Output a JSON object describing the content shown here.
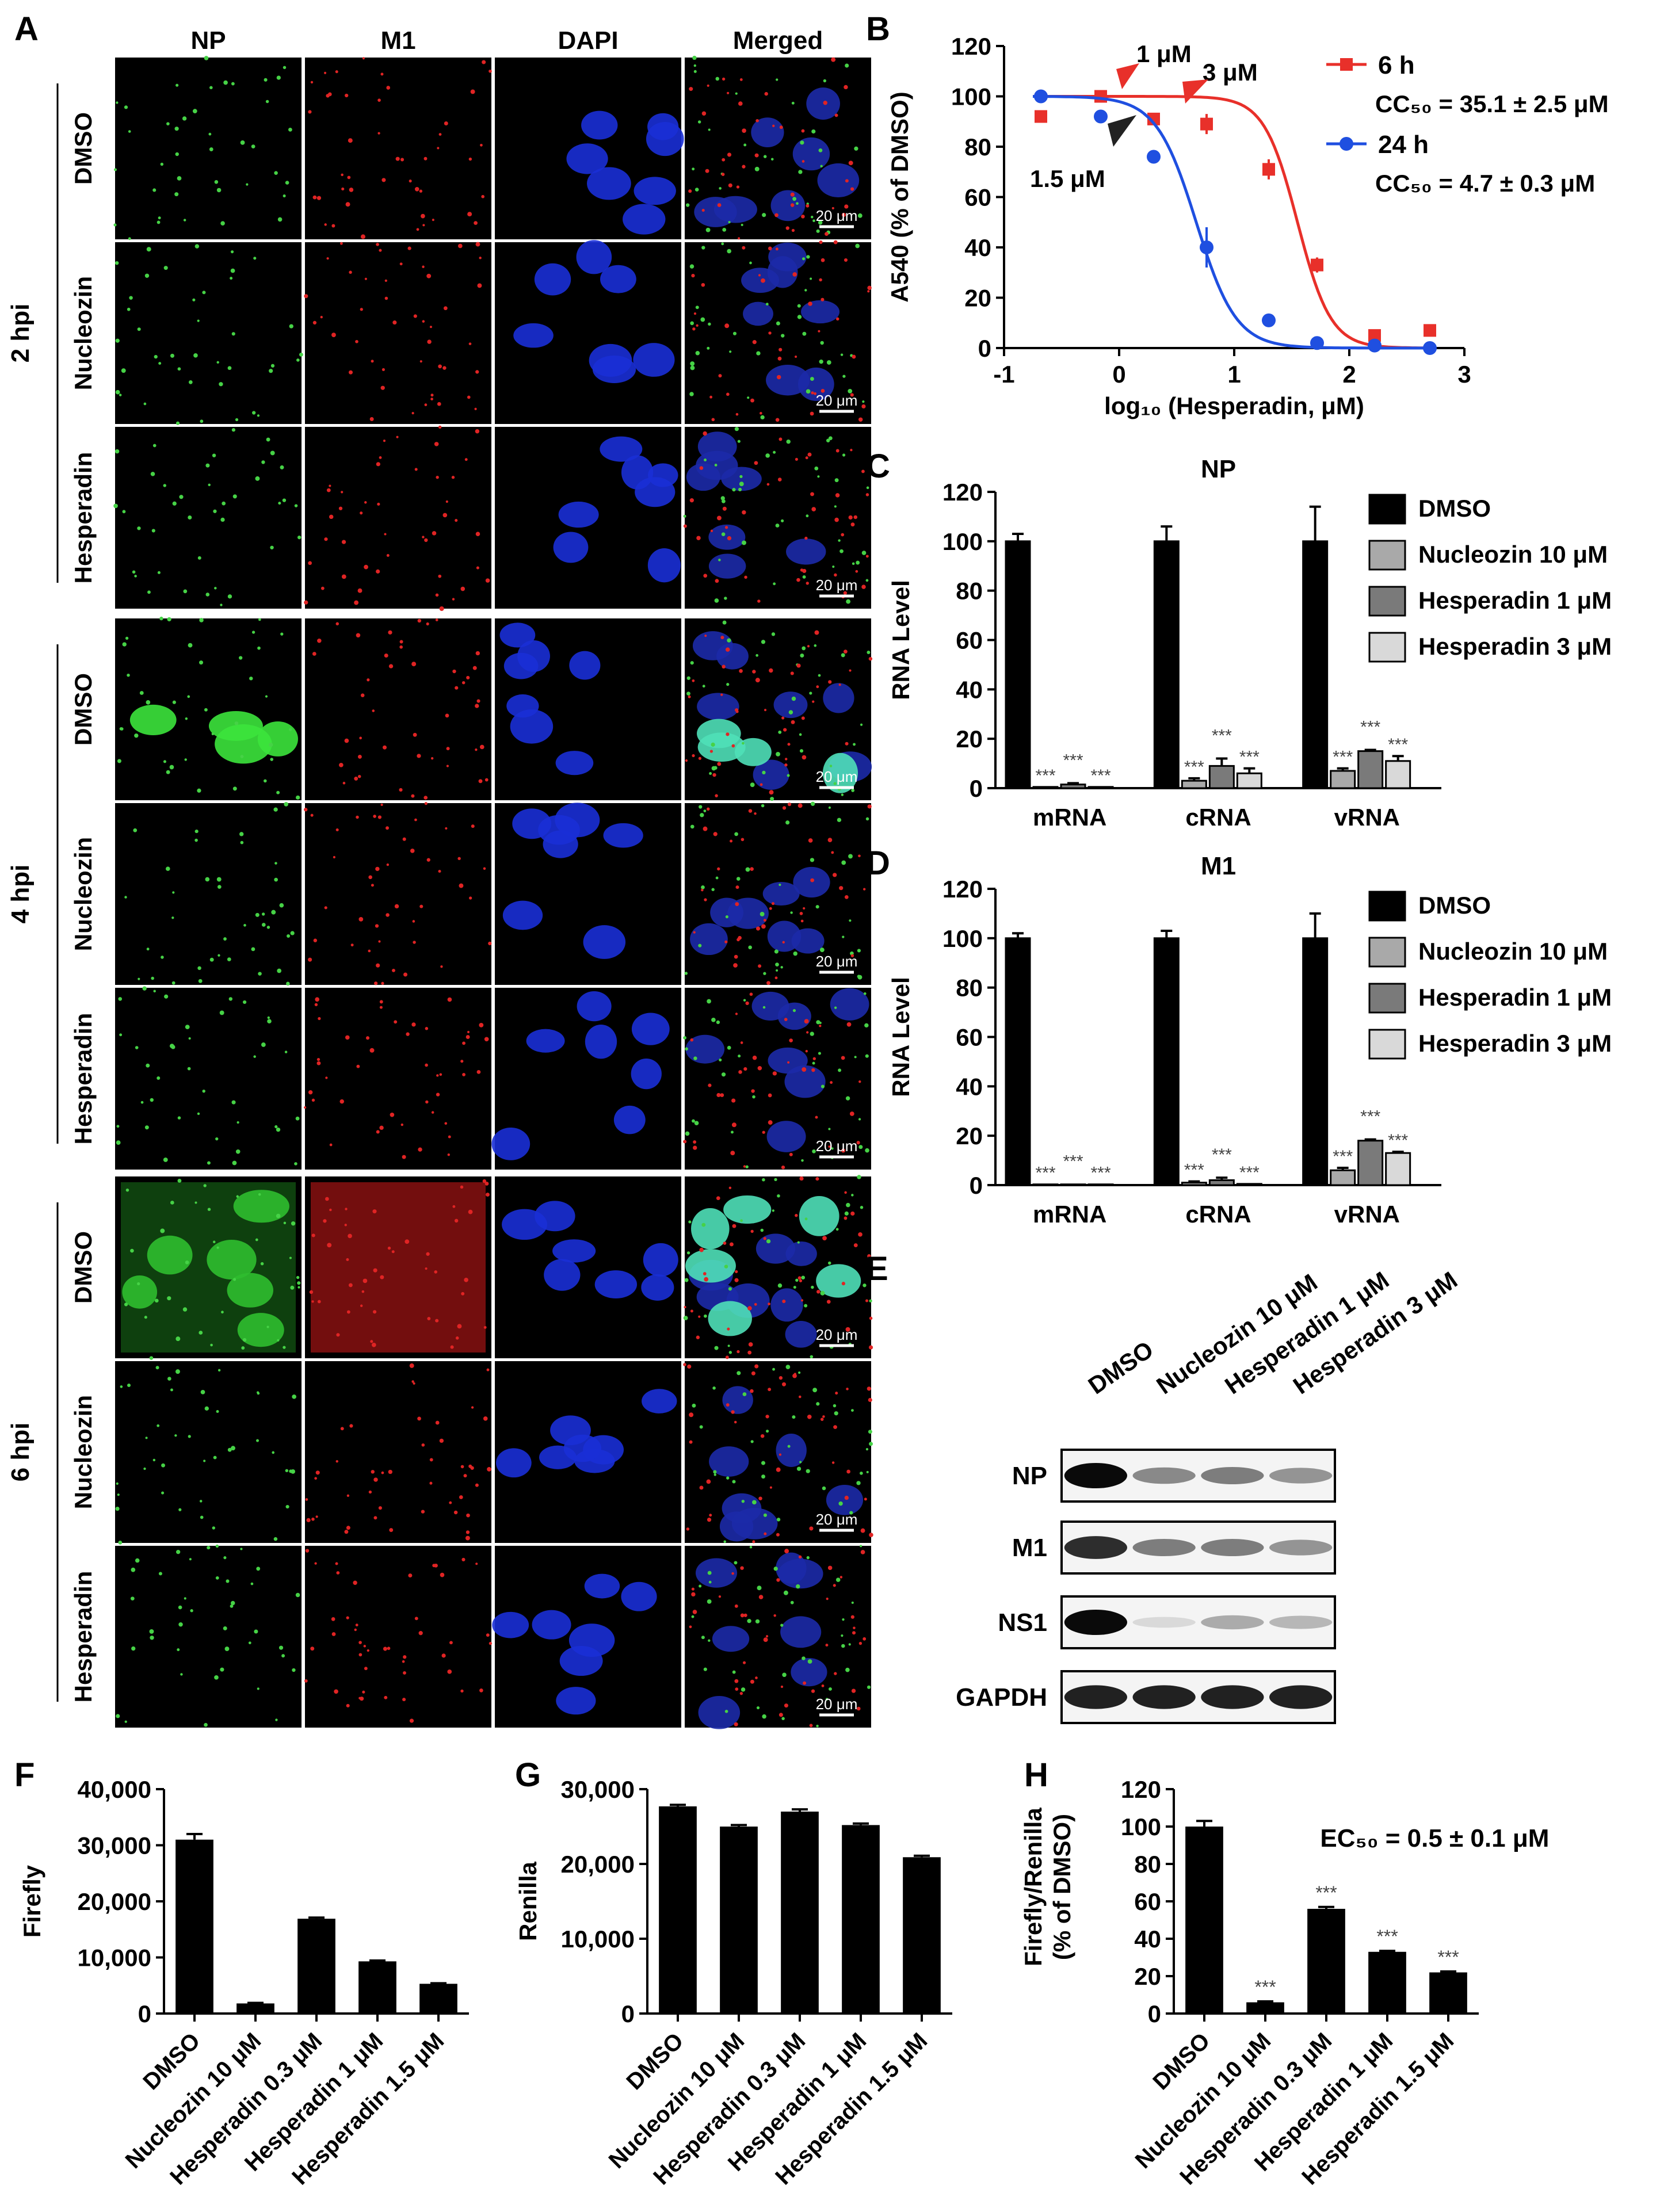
{
  "panel_letters": [
    "A",
    "B",
    "C",
    "D",
    "E",
    "F",
    "G",
    "H"
  ],
  "microscopy": {
    "columns": [
      "NP",
      "M1",
      "DAPI",
      "Merged"
    ],
    "timepoints": [
      {
        "label": "2 hpi",
        "rows": [
          "DMSO",
          "Nucleozin",
          "Hesperadin"
        ]
      },
      {
        "label": "4 hpi",
        "rows": [
          "DMSO",
          "Nucleozin",
          "Hesperadin"
        ]
      },
      {
        "label": "6 hpi",
        "rows": [
          "DMSO",
          "Nucleozin",
          "Hesperadin"
        ]
      }
    ],
    "scale_bar": "20 μm"
  },
  "western": {
    "lanes": [
      "DMSO",
      "Nucleozin 10 μM",
      "Hesperadin 1 μM",
      "Hesperadin 3 μM"
    ],
    "bands": [
      {
        "name": "NP",
        "intensity": [
          1.0,
          0.45,
          0.5,
          0.4
        ]
      },
      {
        "name": "M1",
        "intensity": [
          0.85,
          0.5,
          0.5,
          0.4
        ]
      },
      {
        "name": "NS1",
        "intensity": [
          1.0,
          0.1,
          0.3,
          0.25
        ]
      },
      {
        "name": "GAPDH",
        "intensity": [
          0.9,
          0.9,
          0.9,
          0.9
        ]
      }
    ]
  },
  "colors": {
    "h6": "#e8302a",
    "h24": "#1f4fe0",
    "black": "#000000",
    "g1": "#a9a9a9",
    "g2": "#7a7a7a",
    "g3": "#d9d9d9"
  },
  "chart_data": [
    {
      "id": "B",
      "type": "line",
      "xlabel": "log₁₀ (Hesperadin, μM)",
      "ylabel": "A540 (% of DMSO)",
      "xlim": [
        -1,
        3
      ],
      "ylim": [
        0,
        120
      ],
      "xticks": [
        "-1",
        "0",
        "1",
        "2",
        "3"
      ],
      "yticks": [
        "0",
        "20",
        "40",
        "60",
        "80",
        "100",
        "120"
      ],
      "series": [
        {
          "name": "6 h",
          "stat": "CC₅₀ = 35.1 ± 2.5 μM",
          "x": [
            -0.68,
            -0.16,
            0.3,
            0.76,
            1.3,
            1.72,
            2.22,
            2.7
          ],
          "y": [
            92,
            100,
            91,
            89,
            71,
            33,
            5,
            7
          ],
          "err": [
            0,
            0,
            2,
            4,
            4,
            3,
            0,
            0
          ]
        },
        {
          "name": "24 h",
          "stat": "CC₅₀ = 4.7 ± 0.3 μM",
          "x": [
            -0.68,
            -0.16,
            0.3,
            0.76,
            1.3,
            1.72,
            2.22,
            2.7
          ],
          "y": [
            100,
            92,
            76,
            40,
            11,
            2,
            1,
            0
          ],
          "err": [
            0,
            0,
            0,
            8,
            0,
            0,
            0,
            0
          ]
        }
      ],
      "annotations": [
        "1 μM",
        "3 μM",
        "1.5 μM"
      ]
    },
    {
      "id": "C",
      "type": "bar",
      "title": "NP",
      "ylabel": "RNA Level",
      "ylim": [
        0,
        120
      ],
      "yticks": [
        "0",
        "20",
        "40",
        "60",
        "80",
        "100",
        "120"
      ],
      "categories": [
        "mRNA",
        "cRNA",
        "vRNA"
      ],
      "series": [
        {
          "name": "DMSO",
          "values": [
            100,
            100,
            100
          ],
          "err": [
            3,
            6,
            14
          ]
        },
        {
          "name": "Nucleozin 10 μM",
          "values": [
            0.5,
            3,
            7
          ],
          "err": [
            0,
            1,
            1
          ]
        },
        {
          "name": "Hesperadin 1 μM",
          "values": [
            1.5,
            9,
            15
          ],
          "err": [
            0.5,
            3,
            0.5
          ]
        },
        {
          "name": "Hesperadin 3 μM",
          "values": [
            0.5,
            6,
            11
          ],
          "err": [
            0,
            2,
            2
          ]
        }
      ],
      "sig": "***"
    },
    {
      "id": "D",
      "type": "bar",
      "title": "M1",
      "ylabel": "RNA Level",
      "ylim": [
        0,
        120
      ],
      "yticks": [
        "0",
        "20",
        "40",
        "60",
        "80",
        "100",
        "120"
      ],
      "categories": [
        "mRNA",
        "cRNA",
        "vRNA"
      ],
      "series": [
        {
          "name": "DMSO",
          "values": [
            100,
            100,
            100
          ],
          "err": [
            2,
            3,
            10
          ]
        },
        {
          "name": "Nucleozin 10 μM",
          "values": [
            0.3,
            1,
            6
          ],
          "err": [
            0,
            0.5,
            1
          ]
        },
        {
          "name": "Hesperadin 1 μM",
          "values": [
            0.3,
            2,
            18
          ],
          "err": [
            0,
            1,
            0.5
          ]
        },
        {
          "name": "Hesperadin 3 μM",
          "values": [
            0.3,
            0.5,
            13
          ],
          "err": [
            0,
            0,
            0.5
          ]
        }
      ],
      "sig": "***"
    },
    {
      "id": "F",
      "type": "bar",
      "ylabel": "Firefly",
      "ylim": [
        0,
        40000
      ],
      "yticks": [
        "0",
        "10,000",
        "20,000",
        "30,000",
        "40,000"
      ],
      "categories": [
        "DMSO",
        "Nucleozin 10 μM",
        "Hesperadin 0.3 μM",
        "Hesperadin 1 μM",
        "Hesperadin 1.5 μM"
      ],
      "values": [
        31000,
        1800,
        16900,
        9300,
        5300
      ],
      "err": [
        1000,
        100,
        200,
        150,
        100
      ]
    },
    {
      "id": "G",
      "type": "bar",
      "ylabel": "Renilla",
      "ylim": [
        0,
        30000
      ],
      "yticks": [
        "0",
        "10,000",
        "20,000",
        "30,000"
      ],
      "categories": [
        "DMSO",
        "Nucleozin 10 μM",
        "Hesperadin 0.3 μM",
        "Hesperadin 1 μM",
        "Hesperadin 1.5 μM"
      ],
      "values": [
        27700,
        25000,
        27000,
        25200,
        20900
      ],
      "err": [
        200,
        200,
        300,
        200,
        200
      ]
    },
    {
      "id": "H",
      "type": "bar",
      "ylabel": "Firefly/Renilla\n(% of DMSO)",
      "ylim": [
        0,
        120
      ],
      "yticks": [
        "0",
        "20",
        "40",
        "60",
        "80",
        "100",
        "120"
      ],
      "categories": [
        "DMSO",
        "Nucleozin 10 μM",
        "Hesperadin 0.3 μM",
        "Hesperadin 1 μM",
        "Hesperadin 1.5 μM"
      ],
      "values": [
        100,
        6,
        56,
        33,
        22
      ],
      "err": [
        3,
        0.5,
        1,
        0.5,
        0.5
      ],
      "annotation": "EC₅₀ = 0.5 ± 0.1 μM",
      "sig": "***"
    }
  ]
}
